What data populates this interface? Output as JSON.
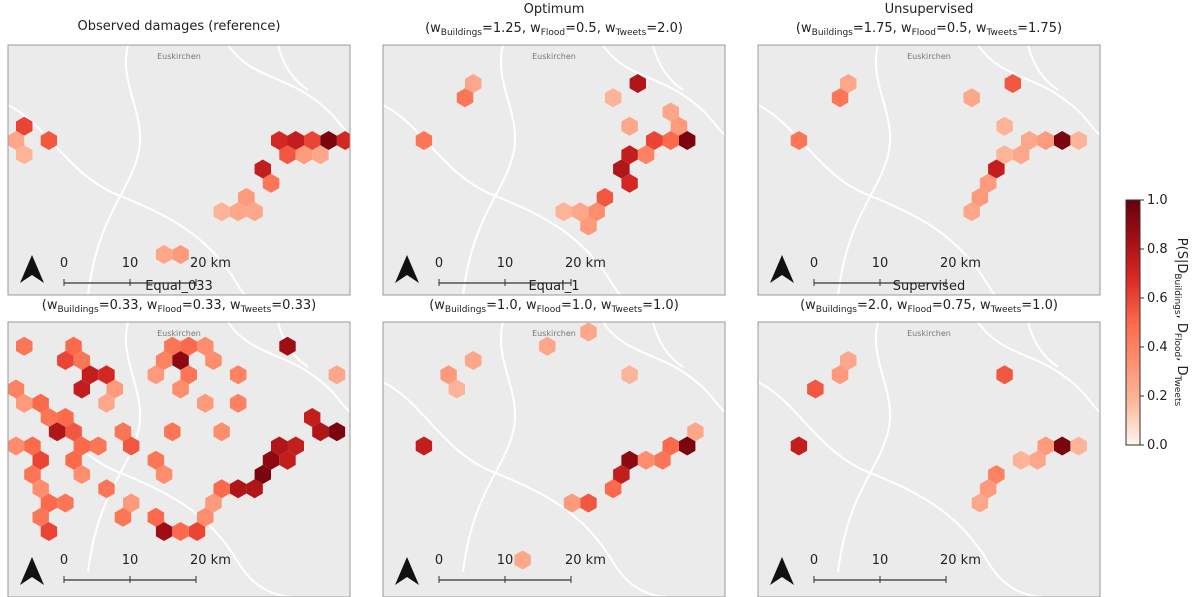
{
  "panels": [
    {
      "title": "Observed damages (reference)",
      "subtitle": null,
      "cells": [
        {
          "col": 0,
          "row": 5,
          "value": 0.6
        },
        {
          "col": 0,
          "row": 6,
          "value": 0.25
        },
        {
          "col": 0,
          "row": 7,
          "value": 0.2
        },
        {
          "col": 2,
          "row": 6,
          "value": 0.55
        },
        {
          "col": 16,
          "row": 7,
          "value": 0.55
        },
        {
          "col": 17,
          "row": 7,
          "value": 0.3
        },
        {
          "col": 18,
          "row": 7,
          "value": 0.25
        },
        {
          "col": 16,
          "row": 6,
          "value": 0.7
        },
        {
          "col": 17,
          "row": 6,
          "value": 0.75
        },
        {
          "col": 18,
          "row": 6,
          "value": 0.6
        },
        {
          "col": 19,
          "row": 6,
          "value": 0.95
        },
        {
          "col": 20,
          "row": 6,
          "value": 0.7
        },
        {
          "col": 21,
          "row": 6,
          "value": 0.4
        },
        {
          "col": 15,
          "row": 8,
          "value": 0.75
        },
        {
          "col": 15,
          "row": 9,
          "value": 0.45
        },
        {
          "col": 14,
          "row": 10,
          "value": 0.3
        },
        {
          "col": 14,
          "row": 11,
          "value": 0.25
        },
        {
          "col": 13,
          "row": 11,
          "value": 0.25
        },
        {
          "col": 12,
          "row": 11,
          "value": 0.2
        },
        {
          "col": 9,
          "row": 14,
          "value": 0.25
        },
        {
          "col": 10,
          "row": 14,
          "value": 0.3
        }
      ]
    },
    {
      "title": "Optimum",
      "subtitle": [
        "(w",
        "Buildings",
        "=1.25, w",
        "Flood",
        "=0.5, w",
        "Tweets",
        "=2.0)"
      ],
      "cells": [
        {
          "col": 2,
          "row": 6,
          "value": 0.45
        },
        {
          "col": 15,
          "row": 2,
          "value": 0.8
        },
        {
          "col": 5,
          "row": 2,
          "value": 0.25
        },
        {
          "col": 4,
          "row": 3,
          "value": 0.45
        },
        {
          "col": 13,
          "row": 3,
          "value": 0.2
        },
        {
          "col": 14,
          "row": 5,
          "value": 0.25
        },
        {
          "col": 17,
          "row": 4,
          "value": 0.25
        },
        {
          "col": 17,
          "row": 5,
          "value": 0.3
        },
        {
          "col": 18,
          "row": 6,
          "value": 0.95
        },
        {
          "col": 17,
          "row": 6,
          "value": 0.5
        },
        {
          "col": 16,
          "row": 6,
          "value": 0.6
        },
        {
          "col": 15,
          "row": 7,
          "value": 0.4
        },
        {
          "col": 14,
          "row": 7,
          "value": 0.75
        },
        {
          "col": 14,
          "row": 8,
          "value": 0.8
        },
        {
          "col": 14,
          "row": 9,
          "value": 0.7
        },
        {
          "col": 13,
          "row": 10,
          "value": 0.55
        },
        {
          "col": 12,
          "row": 11,
          "value": 0.35
        },
        {
          "col": 11,
          "row": 11,
          "value": 0.25
        },
        {
          "col": 10,
          "row": 11,
          "value": 0.2
        },
        {
          "col": 12,
          "row": 12,
          "value": 0.3
        }
      ]
    },
    {
      "title": "Unsupervised",
      "subtitle": [
        "(w",
        "Buildings",
        "=1.75, w",
        "Flood",
        "=0.5, w",
        "Tweets",
        "=1.75)"
      ],
      "cells": [
        {
          "col": 2,
          "row": 6,
          "value": 0.45
        },
        {
          "col": 15,
          "row": 2,
          "value": 0.55
        },
        {
          "col": 5,
          "row": 2,
          "value": 0.25
        },
        {
          "col": 4,
          "row": 3,
          "value": 0.45
        },
        {
          "col": 12,
          "row": 3,
          "value": 0.25
        },
        {
          "col": 14,
          "row": 5,
          "value": 0.2
        },
        {
          "col": 18,
          "row": 6,
          "value": 0.95
        },
        {
          "col": 17,
          "row": 6,
          "value": 0.3
        },
        {
          "col": 16,
          "row": 6,
          "value": 0.25
        },
        {
          "col": 15,
          "row": 7,
          "value": 0.25
        },
        {
          "col": 14,
          "row": 7,
          "value": 0.2
        },
        {
          "col": 14,
          "row": 8,
          "value": 0.75
        },
        {
          "col": 13,
          "row": 9,
          "value": 0.3
        },
        {
          "col": 13,
          "row": 10,
          "value": 0.3
        },
        {
          "col": 12,
          "row": 11,
          "value": 0.25
        },
        {
          "col": 19,
          "row": 6,
          "value": 0.2
        }
      ]
    },
    {
      "title": "Equal_033",
      "subtitle": [
        "(w",
        "Buildings",
        "=0.33, w",
        "Flood",
        "=0.33, w",
        "Tweets",
        "=0.33)"
      ],
      "cells": [
        {
          "col": 0,
          "row": 1,
          "value": 0.45
        },
        {
          "col": 3,
          "row": 1,
          "value": 0.5
        },
        {
          "col": 9,
          "row": 1,
          "value": 0.45
        },
        {
          "col": 10,
          "row": 1,
          "value": 0.5
        },
        {
          "col": 11,
          "row": 1,
          "value": 0.35
        },
        {
          "col": 16,
          "row": 1,
          "value": 0.85
        },
        {
          "col": 3,
          "row": 2,
          "value": 0.6
        },
        {
          "col": 4,
          "row": 2,
          "value": 0.45
        },
        {
          "col": 9,
          "row": 2,
          "value": 0.4
        },
        {
          "col": 10,
          "row": 2,
          "value": 0.9
        },
        {
          "col": 12,
          "row": 2,
          "value": 0.35
        },
        {
          "col": 4,
          "row": 3,
          "value": 0.75
        },
        {
          "col": 5,
          "row": 3,
          "value": 0.7
        },
        {
          "col": 8,
          "row": 3,
          "value": 0.3
        },
        {
          "col": 10,
          "row": 3,
          "value": 0.45
        },
        {
          "col": 13,
          "row": 3,
          "value": 0.4
        },
        {
          "col": 19,
          "row": 3,
          "value": 0.25
        },
        {
          "col": 0,
          "row": 4,
          "value": 0.4
        },
        {
          "col": 4,
          "row": 4,
          "value": 0.75
        },
        {
          "col": 6,
          "row": 4,
          "value": 0.3
        },
        {
          "col": 10,
          "row": 4,
          "value": 0.35
        },
        {
          "col": 0,
          "row": 5,
          "value": 0.3
        },
        {
          "col": 1,
          "row": 5,
          "value": 0.5
        },
        {
          "col": 5,
          "row": 5,
          "value": 0.25
        },
        {
          "col": 11,
          "row": 5,
          "value": 0.3
        },
        {
          "col": 13,
          "row": 5,
          "value": 0.4
        },
        {
          "col": 2,
          "row": 6,
          "value": 0.45
        },
        {
          "col": 3,
          "row": 6,
          "value": 0.5
        },
        {
          "col": 18,
          "row": 6,
          "value": 0.75
        },
        {
          "col": 2,
          "row": 7,
          "value": 0.8
        },
        {
          "col": 3,
          "row": 7,
          "value": 0.55
        },
        {
          "col": 6,
          "row": 7,
          "value": 0.45
        },
        {
          "col": 9,
          "row": 7,
          "value": 0.45
        },
        {
          "col": 12,
          "row": 7,
          "value": 0.35
        },
        {
          "col": 19,
          "row": 7,
          "value": 0.95
        },
        {
          "col": 18,
          "row": 7,
          "value": 0.8
        },
        {
          "col": 0,
          "row": 8,
          "value": 0.35
        },
        {
          "col": 1,
          "row": 8,
          "value": 0.5
        },
        {
          "col": 4,
          "row": 8,
          "value": 0.5
        },
        {
          "col": 5,
          "row": 8,
          "value": 0.45
        },
        {
          "col": 7,
          "row": 8,
          "value": 0.55
        },
        {
          "col": 16,
          "row": 8,
          "value": 0.8
        },
        {
          "col": 17,
          "row": 8,
          "value": 0.75
        },
        {
          "col": 1,
          "row": 9,
          "value": 0.6
        },
        {
          "col": 3,
          "row": 9,
          "value": 0.5
        },
        {
          "col": 8,
          "row": 9,
          "value": 0.45
        },
        {
          "col": 15,
          "row": 9,
          "value": 0.9
        },
        {
          "col": 16,
          "row": 9,
          "value": 0.75
        },
        {
          "col": 1,
          "row": 10,
          "value": 0.45
        },
        {
          "col": 4,
          "row": 10,
          "value": 0.35
        },
        {
          "col": 9,
          "row": 10,
          "value": 0.35
        },
        {
          "col": 15,
          "row": 10,
          "value": 0.95
        },
        {
          "col": 1,
          "row": 11,
          "value": 0.35
        },
        {
          "col": 5,
          "row": 11,
          "value": 0.45
        },
        {
          "col": 12,
          "row": 11,
          "value": 0.5
        },
        {
          "col": 14,
          "row": 11,
          "value": 0.8
        },
        {
          "col": 13,
          "row": 11,
          "value": 0.8
        },
        {
          "col": 2,
          "row": 12,
          "value": 0.5
        },
        {
          "col": 3,
          "row": 12,
          "value": 0.45
        },
        {
          "col": 7,
          "row": 12,
          "value": 0.3
        },
        {
          "col": 12,
          "row": 12,
          "value": 0.3
        },
        {
          "col": 1,
          "row": 13,
          "value": 0.45
        },
        {
          "col": 6,
          "row": 13,
          "value": 0.45
        },
        {
          "col": 8,
          "row": 13,
          "value": 0.5
        },
        {
          "col": 11,
          "row": 13,
          "value": 0.35
        },
        {
          "col": 2,
          "row": 14,
          "value": 0.6
        },
        {
          "col": 9,
          "row": 14,
          "value": 0.85
        },
        {
          "col": 10,
          "row": 14,
          "value": 0.5
        },
        {
          "col": 11,
          "row": 14,
          "value": 0.6
        }
      ]
    },
    {
      "title": "Equal_1",
      "subtitle": [
        "(w",
        "Buildings",
        "=1.0, w",
        "Flood",
        "=1.0, w",
        "Tweets",
        "=1.0)"
      ],
      "cells": [
        {
          "col": 5,
          "row": 2,
          "value": 0.25
        },
        {
          "col": 3,
          "row": 3,
          "value": 0.3
        },
        {
          "col": 4,
          "row": 4,
          "value": 0.2
        },
        {
          "col": 9,
          "row": 1,
          "value": 0.25
        },
        {
          "col": 12,
          "row": 0,
          "value": 0.25
        },
        {
          "col": 14,
          "row": 3,
          "value": 0.2
        },
        {
          "col": 2,
          "row": 8,
          "value": 0.75
        },
        {
          "col": 18,
          "row": 8,
          "value": 0.95
        },
        {
          "col": 17,
          "row": 8,
          "value": 0.5
        },
        {
          "col": 16,
          "row": 9,
          "value": 0.45
        },
        {
          "col": 15,
          "row": 9,
          "value": 0.35
        },
        {
          "col": 14,
          "row": 9,
          "value": 0.9
        },
        {
          "col": 14,
          "row": 10,
          "value": 0.75
        },
        {
          "col": 13,
          "row": 11,
          "value": 0.5
        },
        {
          "col": 12,
          "row": 12,
          "value": 0.55
        },
        {
          "col": 11,
          "row": 12,
          "value": 0.3
        },
        {
          "col": 8,
          "row": 16,
          "value": 0.25
        },
        {
          "col": 18,
          "row": 7,
          "value": 0.25
        }
      ]
    },
    {
      "title": "Supervised",
      "subtitle": [
        "(w",
        "Buildings",
        "=2.0, w",
        "Flood",
        "=0.75, w",
        "Tweets",
        "=1.0)"
      ],
      "cells": [
        {
          "col": 5,
          "row": 2,
          "value": 0.25
        },
        {
          "col": 4,
          "row": 3,
          "value": 0.3
        },
        {
          "col": 3,
          "row": 4,
          "value": 0.55
        },
        {
          "col": 14,
          "row": 3,
          "value": 0.55
        },
        {
          "col": 2,
          "row": 8,
          "value": 0.75
        },
        {
          "col": 18,
          "row": 8,
          "value": 0.95
        },
        {
          "col": 17,
          "row": 8,
          "value": 0.3
        },
        {
          "col": 16,
          "row": 9,
          "value": 0.25
        },
        {
          "col": 15,
          "row": 9,
          "value": 0.2
        },
        {
          "col": 14,
          "row": 10,
          "value": 0.4
        },
        {
          "col": 13,
          "row": 11,
          "value": 0.3
        },
        {
          "col": 13,
          "row": 12,
          "value": 0.25
        },
        {
          "col": 19,
          "row": 8,
          "value": 0.2
        }
      ]
    }
  ],
  "place_label": "Euskirchen",
  "scale_labels": [
    "0",
    "10",
    "20 km"
  ],
  "colorbar": {
    "label": [
      "P(S|D",
      "Buildings",
      ", D",
      "Flood",
      ", D",
      "Tweets"
    ],
    "lim": [
      0,
      1
    ],
    "ticks": [
      {
        "value": 0,
        "label": "0.0"
      },
      {
        "value": 0.2,
        "label": "0.2"
      },
      {
        "value": 0.4,
        "label": "0.4"
      },
      {
        "value": 0.6,
        "label": "0.6"
      },
      {
        "value": 0.8,
        "label": "0.8"
      },
      {
        "value": 1,
        "label": "1.0"
      }
    ],
    "colors": [
      "#fff5f0",
      "#fcbba1",
      "#fc9272",
      "#fb6a4a",
      "#de2d26",
      "#a50f15",
      "#67000d"
    ]
  }
}
